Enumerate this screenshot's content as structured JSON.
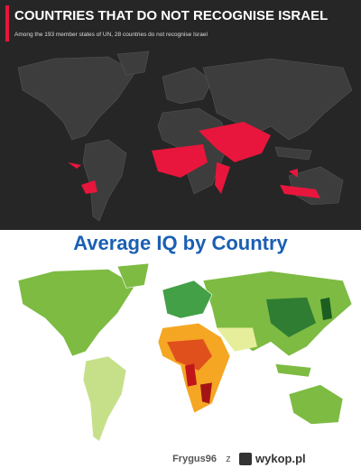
{
  "top_panel": {
    "title": "COUNTRIES THAT DO NOT RECOGNISE ISRAEL",
    "subtitle": "Among the 193 member states of UN, 28 countries do not recognise Israel"
  },
  "bottom_panel": {
    "title": "Average IQ by Country"
  },
  "footer": {
    "user": "Frygus96",
    "preposition": "z",
    "site": "wykop.pl"
  }
}
